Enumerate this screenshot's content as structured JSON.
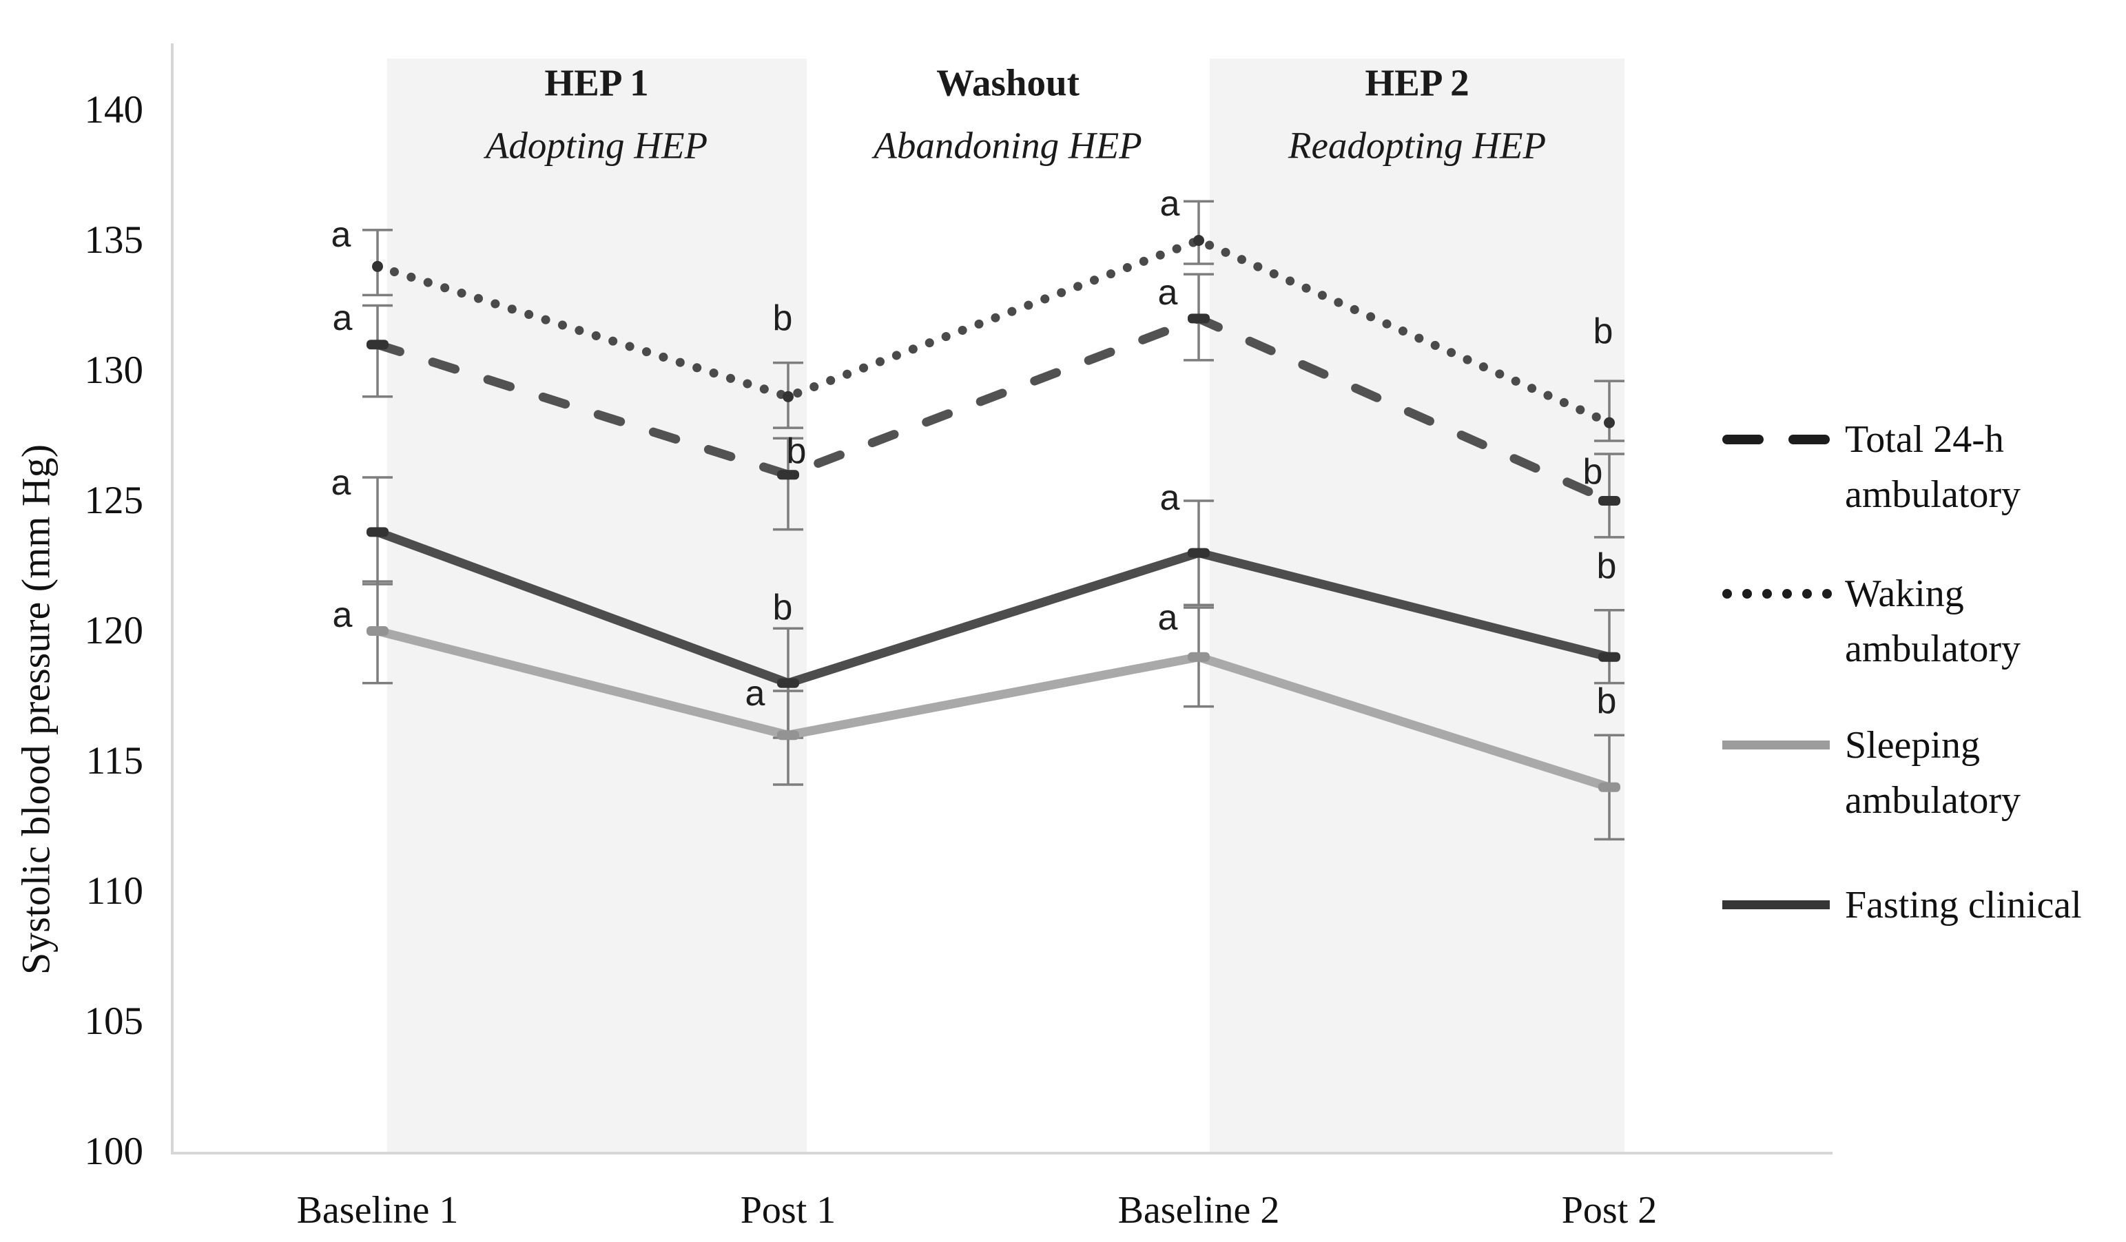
{
  "chart_data": {
    "type": "line",
    "title": "",
    "xlabel": "",
    "ylabel": "Systolic blood pressure (mm Hg)",
    "ylim": [
      100,
      142
    ],
    "yticks": [
      140,
      135,
      130,
      125,
      120,
      115,
      110,
      105,
      100
    ],
    "categories": [
      "Baseline 1",
      "Post 1",
      "Baseline 2",
      "Post 2"
    ],
    "grid": false,
    "legend_position": "right",
    "shaded_band_color": "#f3f3f3",
    "error_bar_color": "#7d7d7d",
    "phases": [
      {
        "label": "HEP 1",
        "sublabel": "Adopting HEP",
        "band": "shaded",
        "span": [
          "Baseline 1",
          "Post 1"
        ]
      },
      {
        "label": "Washout",
        "sublabel": "Abandoning HEP",
        "band": "none",
        "span": [
          "Post 1",
          "Baseline 2"
        ]
      },
      {
        "label": "HEP 2",
        "sublabel": "Readopting HEP",
        "band": "shaded",
        "span": [
          "Baseline 2",
          "Post 2"
        ]
      }
    ],
    "series": [
      {
        "name": "Total 24-h ambulatory",
        "legend_lines": [
          "Total 24-h",
          "ambulatory"
        ],
        "line_style": "dashed",
        "color": "#525252",
        "marker_color": "#333333",
        "values": [
          131,
          126,
          132,
          125
        ],
        "err_up": [
          1.5,
          1.4,
          1.7,
          1.8
        ],
        "err_down": [
          2.0,
          2.1,
          1.6,
          1.4
        ],
        "sig_letters": [
          {
            "t": "a",
            "v": 132.0,
            "dx": -51
          },
          {
            "t": "b",
            "v": 126.9,
            "dx": 12
          },
          {
            "t": "a",
            "v": 133.0,
            "dx": -45
          },
          {
            "t": "b",
            "v": 126.1,
            "dx": -24
          }
        ]
      },
      {
        "name": "Waking ambulatory",
        "legend_lines": [
          "Waking",
          "ambulatory"
        ],
        "line_style": "dotted",
        "color": "#4a4a4a",
        "marker_color": "#333333",
        "values": [
          134,
          129,
          135,
          128
        ],
        "err_up": [
          1.4,
          1.3,
          1.5,
          1.6
        ],
        "err_down": [
          1.1,
          1.2,
          0.9,
          0.7
        ],
        "sig_letters": [
          {
            "t": "a",
            "v": 135.2,
            "dx": -53
          },
          {
            "t": "b",
            "v": 132.0,
            "dx": -8
          },
          {
            "t": "a",
            "v": 136.4,
            "dx": -42
          },
          {
            "t": "b",
            "v": 131.5,
            "dx": -9
          }
        ]
      },
      {
        "name": "Sleeping ambulatory",
        "legend_lines": [
          "Sleeping",
          "ambulatory"
        ],
        "line_style": "solid",
        "color": "#a9a9a9",
        "marker_color": "#939393",
        "values": [
          120,
          116,
          119,
          114
        ],
        "err_up": [
          1.9,
          1.7,
          1.9,
          2.0
        ],
        "err_down": [
          2.0,
          1.9,
          1.9,
          2.0
        ],
        "sig_letters": [
          {
            "t": "a",
            "v": 120.6,
            "dx": -51
          },
          {
            "t": "a",
            "v": 117.6,
            "dx": -48
          },
          {
            "t": "a",
            "v": 120.5,
            "dx": -45
          },
          {
            "t": "b",
            "v": 117.3,
            "dx": -4
          }
        ]
      },
      {
        "name": "Fasting clinical",
        "legend_lines": [
          "Fasting clinical"
        ],
        "line_style": "solid",
        "color": "#4d4d4d",
        "marker_color": "#333333",
        "values": [
          123.8,
          118,
          123,
          119
        ],
        "err_up": [
          2.1,
          2.1,
          2.0,
          1.8
        ],
        "err_down": [
          2.0,
          2.1,
          2.0,
          1.0
        ],
        "sig_letters": [
          {
            "t": "a",
            "v": 125.7,
            "dx": -53
          },
          {
            "t": "b",
            "v": 120.9,
            "dx": -8
          },
          {
            "t": "a",
            "v": 125.1,
            "dx": -42
          },
          {
            "t": "b",
            "v": 122.5,
            "dx": -4
          }
        ]
      }
    ]
  }
}
